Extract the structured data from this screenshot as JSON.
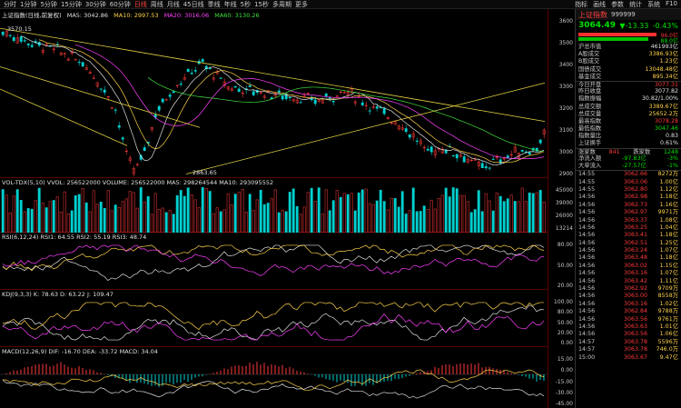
{
  "toolbar": {
    "timeframes": [
      "分时",
      "1分钟",
      "5分钟",
      "15分钟",
      "30分钟",
      "60分钟",
      "日线",
      "周线",
      "月线",
      "45日线",
      "季线",
      "年线",
      "5秒",
      "15秒",
      "多周期",
      "更多"
    ],
    "active_index": 6,
    "right_menu": [
      "指标",
      "画线",
      "参数",
      "统计",
      "系统",
      "F10"
    ]
  },
  "main": {
    "legend_name": "上证指数(日线,前复权)",
    "ma5": "MA5: 3042.86",
    "ma10": "MA10: 2997.53",
    "ma20": "MA20: 3016.06",
    "ma60": "MA60: 3130.26",
    "high_label": "3570.15",
    "low_label": "2863.65",
    "yticks": [
      "3600",
      "3500",
      "3400",
      "3300",
      "3200",
      "3100",
      "3000",
      "2900"
    ]
  },
  "volume": {
    "legend": "VOL-TDX(5,10) VVOL: 256522000 VOLUME: 256522000 MA5: 298264544 MA10: 293095552",
    "yticks": [
      "45000",
      "39000",
      "26000",
      "13214"
    ],
    "unit": "X1万"
  },
  "rsi": {
    "legend": "RSI(6,12,24) RSI1: 64.55 RSI2: 55.19 RSI3: 48.74",
    "yticks": [
      "80.00",
      "50.00",
      "20.00"
    ]
  },
  "kdj": {
    "legend": "KDJ(9,3,3) K: 78.63 D: 63.22 J: 109.47",
    "yticks": [
      "100.00",
      "80.00",
      "50.00",
      "20.00",
      "0.00"
    ]
  },
  "macd": {
    "legend": "MACD(12,26,9) DIF: -16.70 DEA: -33.72 MACD: 34.04",
    "yticks": [
      "15.00",
      "0.00",
      "-15.00",
      "-30.00",
      "-45.00"
    ]
  },
  "quote": {
    "name": "上证指数",
    "code": "999999",
    "price": "3064.49",
    "change": "▼-13.33",
    "pct": "-0.43%",
    "bar_red_pct": "96.0亿",
    "bar_green_pct": "88.0亿",
    "up_ratio": 0.52
  },
  "stats": [
    {
      "label": "沪总市值",
      "value": "461993亿",
      "color": "white"
    },
    {
      "label": "A股成交",
      "value": "3386.93亿",
      "color": "yel"
    },
    {
      "label": "B股成交",
      "value": "1.23亿",
      "color": "yel"
    },
    {
      "label": "国债成交",
      "value": "13048.48亿",
      "color": "yel"
    },
    {
      "label": "基金成交",
      "value": "895.34亿",
      "color": "yel"
    },
    {
      "label": "今日开盘",
      "value": "3077.31",
      "color": "red"
    },
    {
      "label": "昨日收盘",
      "value": "3077.82",
      "color": "white"
    },
    {
      "label": "指数振幅",
      "value": "30.82/1.00%",
      "color": "white"
    },
    {
      "label": "总成交额",
      "value": "3389.67亿",
      "color": "yel"
    },
    {
      "label": "总成交量",
      "value": "25652.2万",
      "color": "yel"
    },
    {
      "label": "最高指数",
      "value": "3078.28",
      "color": "red"
    },
    {
      "label": "最低指数",
      "value": "3047.46",
      "color": "green"
    },
    {
      "label": "指数量比",
      "value": "0.83",
      "color": "white"
    },
    {
      "label": "上证换手",
      "value": "0.61%",
      "color": "white"
    }
  ],
  "updown": {
    "label_up": "涨家数",
    "up": "841",
    "label_down": "跌家数",
    "down": "1248"
  },
  "flows": [
    {
      "label": "净流入额",
      "value": "-97.83亿",
      "pct": "-3%"
    },
    {
      "label": "大单流入",
      "value": "-27.57亿",
      "pct": "-1%"
    }
  ],
  "ticks": [
    [
      "14:55",
      "3062.66",
      "8272万"
    ],
    [
      "14:55",
      "3063.06",
      "1.00亿"
    ],
    [
      "14:55",
      "3062.80",
      "1.12亿"
    ],
    [
      "14:56",
      "3062.98",
      "1.18亿"
    ],
    [
      "14:56",
      "3062.73",
      "1.16亿"
    ],
    [
      "14:56",
      "3062.97",
      "9971万"
    ],
    [
      "14:56",
      "3063.37",
      "1.08亿"
    ],
    [
      "14:56",
      "3063.25",
      "1.04亿"
    ],
    [
      "14:56",
      "3063.41",
      "1.18亿"
    ],
    [
      "14:56",
      "3062.51",
      "1.25亿"
    ],
    [
      "14:56",
      "3063.24",
      "1.07亿"
    ],
    [
      "14:56",
      "3063.48",
      "1.18亿"
    ],
    [
      "14:56",
      "3063.02",
      "1.15亿"
    ],
    [
      "14:56",
      "3063.16",
      "1.07亿"
    ],
    [
      "14:56",
      "3063.42",
      "1.11亿"
    ],
    [
      "14:56",
      "3062.92",
      "9709万"
    ],
    [
      "14:56",
      "3063.00",
      "8558万"
    ],
    [
      "14:56",
      "3063.16",
      "1.02亿"
    ],
    [
      "14:56",
      "3062.84",
      "9788万"
    ],
    [
      "14:56",
      "3063.56",
      "9761万"
    ],
    [
      "14:56",
      "3063.63",
      "1.01亿"
    ],
    [
      "14:56",
      "3063.56",
      "1.06亿"
    ],
    [
      "14:57",
      "3063.78",
      "5596万"
    ],
    [
      "14:57",
      "3063.78",
      "746.0万"
    ],
    [
      "15:00",
      "3063.67",
      "9.47亿"
    ]
  ]
}
